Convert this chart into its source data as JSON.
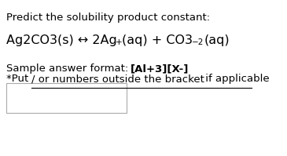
{
  "title_line": "Predict the solubility product constant:",
  "eq_base": "Ag2CO3(s) ↔ 2Ag",
  "eq_sup1": "+",
  "eq_mid": "(aq) + CO3",
  "eq_sup2": "−2",
  "eq_end": "(aq)",
  "sample_label": "Sample answer format: ",
  "sample_bold": "[Al+3][X-]",
  "note_normal1": "*Put ",
  "note_underline": "/ or numbers outside the bracket",
  "note_normal2": " if applicable",
  "bg_color": "#ffffff",
  "text_color": "#000000",
  "title_fontsize": 9.5,
  "eq_fontsize": 11.5,
  "sample_fontsize": 9.5,
  "note_fontsize": 9.5
}
